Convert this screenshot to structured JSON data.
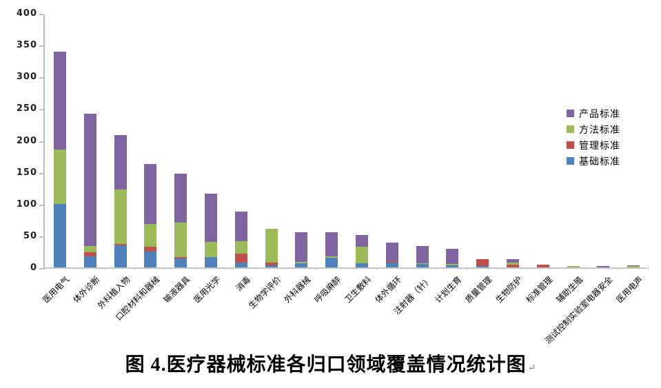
{
  "chart_data": {
    "type": "bar",
    "stacked": true,
    "title": "图 4.医疗器械标准各归口领域覆盖情况统计图",
    "paragraph_mark": "↵",
    "xlabel": "",
    "ylabel": "",
    "ylim": [
      0,
      400
    ],
    "ytick_step": 50,
    "yticks": [
      0,
      50,
      100,
      150,
      200,
      250,
      300,
      350,
      400
    ],
    "grid": false,
    "legend_position": "right",
    "categories": [
      "医用电气",
      "体外诊断",
      "外科植入物",
      "口腔材料和器械",
      "输液器具",
      "医用光学",
      "消毒",
      "生物学评价",
      "外科器械",
      "呼吸麻醉",
      "卫生敷料",
      "体外循环",
      "注射器（针）",
      "计划生育",
      "质量管理",
      "生物防护",
      "标准管理",
      "辅助生殖",
      "测试控制实验室电器安全",
      "医用电声"
    ],
    "series": [
      {
        "name": "基础标准",
        "color": "#4F81BD",
        "values": [
          100,
          17,
          35,
          25,
          14,
          16,
          8,
          3,
          7,
          15,
          6,
          8,
          5,
          3,
          2,
          0,
          0,
          0,
          0,
          0
        ]
      },
      {
        "name": "管理标准",
        "color": "#C0504D",
        "values": [
          0,
          7,
          2,
          8,
          2,
          0,
          14,
          5,
          0,
          0,
          0,
          2,
          0,
          0,
          11,
          4,
          4,
          0,
          0,
          0
        ]
      },
      {
        "name": "方法标准",
        "color": "#9BBB59",
        "values": [
          85,
          10,
          85,
          35,
          55,
          24,
          19,
          53,
          2,
          2,
          26,
          0,
          2,
          2,
          0,
          4,
          0,
          2,
          0,
          2
        ]
      },
      {
        "name": "产品标准",
        "color": "#8064A2",
        "values": [
          154,
          208,
          86,
          95,
          76,
          76,
          47,
          0,
          46,
          38,
          19,
          29,
          27,
          24,
          0,
          5,
          0,
          0,
          2,
          1
        ]
      }
    ],
    "totals": [
      339,
      242,
      208,
      163,
      147,
      116,
      88,
      61,
      55,
      55,
      51,
      39,
      34,
      29,
      13,
      13,
      4,
      2,
      2,
      3
    ],
    "legend": {
      "order": [
        "产品标准",
        "方法标准",
        "管理标准",
        "基础标准"
      ]
    },
    "colors": {
      "axis_line": "#c6c6c6",
      "tick_label": "#1f1f1f",
      "background": "#ffffff"
    }
  }
}
